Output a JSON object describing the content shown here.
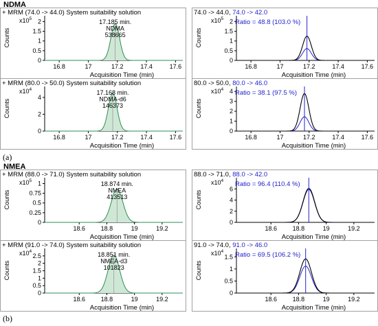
{
  "figure": {
    "section_a_title": "NDMA",
    "section_b_title": "NMEA",
    "panel_a_label": "(a)",
    "panel_b_label": "(b)"
  },
  "colors": {
    "border": "#a0a0a0",
    "peak_fill": "#cfe8d6",
    "peak_line": "#2e8b57",
    "qualifier_blue": "#2222cc",
    "black": "#000000",
    "marker_gray": "#9a9a9a"
  },
  "chart_data": [
    {
      "type": "line",
      "kind": "chromatogram",
      "title": "+ MRM (74.0 -> 44.0) System suitability solution",
      "xlabel": "Acquisition Time (min)",
      "ylabel": "Counts",
      "scale_label": "x10",
      "scale_exp": "5",
      "xlim": [
        16.7,
        17.65
      ],
      "ylim": [
        0,
        2.3
      ],
      "xticks": [
        16.8,
        17,
        17.2,
        17.4,
        17.6
      ],
      "xtick_labels": [
        "16.8",
        "17",
        "17.2",
        "17.4",
        "17.6"
      ],
      "yticks": [
        0,
        0.5,
        1,
        1.5,
        2
      ],
      "ytick_labels": [
        "0",
        "0.5",
        "1",
        "1.5",
        "2"
      ],
      "peak": {
        "rt": 17.185,
        "height": 1.9,
        "sigma": 0.03
      },
      "annotation": [
        "17.185 min.",
        "NDMA",
        "538665"
      ]
    },
    {
      "type": "line",
      "kind": "ratio",
      "title_black": "74.0 -> 44.0,",
      "title_blue": "74.0 -> 42.0",
      "xlabel": "Acquisition Time (min)",
      "ylabel": "Counts",
      "scale_label": "x10",
      "scale_exp": "5",
      "xlim": [
        16.7,
        17.65
      ],
      "ylim": [
        0,
        2.3
      ],
      "xticks": [
        16.8,
        17,
        17.2,
        17.4,
        17.6
      ],
      "xtick_labels": [
        "16.8",
        "17",
        "17.2",
        "17.4",
        "17.6"
      ],
      "yticks": [
        0,
        0.5,
        1,
        1.5,
        2
      ],
      "ytick_labels": [
        "0",
        "0.5",
        "1",
        "1.5",
        "2"
      ],
      "rt": 17.185,
      "sigma": 0.03,
      "series": [
        {
          "color": "black",
          "height": 1.25
        },
        {
          "color": "blue",
          "height": 0.61
        }
      ],
      "ratio_text": "Ratio = 48.8 (103.0 %)"
    },
    {
      "type": "line",
      "kind": "chromatogram",
      "title": "+ MRM (80.0 -> 50.0) System suitability solution",
      "xlabel": "Acquisition Time (min)",
      "ylabel": "Counts",
      "scale_label": "x10",
      "scale_exp": "4",
      "xlim": [
        16.7,
        17.65
      ],
      "ylim": [
        0,
        5.3
      ],
      "xticks": [
        16.8,
        17,
        17.2,
        17.4,
        17.6
      ],
      "xtick_labels": [
        "16.8",
        "17",
        "17.2",
        "17.4",
        "17.6"
      ],
      "yticks": [
        0,
        2,
        4
      ],
      "ytick_labels": [
        "0",
        "2",
        "4"
      ],
      "peak": {
        "rt": 17.168,
        "height": 4.5,
        "sigma": 0.03
      },
      "annotation": [
        "17.168 min.",
        "NDMA-d6",
        "146373"
      ]
    },
    {
      "type": "line",
      "kind": "ratio",
      "title_black": "80.0 -> 50.0,",
      "title_blue": "80.0 -> 46.0",
      "xlabel": "Acquisition Time (min)",
      "ylabel": "Counts",
      "scale_label": "x10",
      "scale_exp": "4",
      "xlim": [
        16.7,
        17.65
      ],
      "ylim": [
        0,
        4.5
      ],
      "xticks": [
        16.8,
        17,
        17.2,
        17.4,
        17.6
      ],
      "xtick_labels": [
        "16.8",
        "17",
        "17.2",
        "17.4",
        "17.6"
      ],
      "yticks": [
        0,
        1,
        2,
        3,
        4
      ],
      "ytick_labels": [
        "0",
        "1",
        "2",
        "3",
        "4"
      ],
      "rt": 17.168,
      "sigma": 0.03,
      "series": [
        {
          "color": "black",
          "height": 3.8
        },
        {
          "color": "blue",
          "height": 1.45
        }
      ],
      "ratio_text": "Ratio = 38.1 (97.5 %)"
    },
    {
      "type": "line",
      "kind": "chromatogram",
      "title": "+ MRM (88.0 -> 71.0) System suitability solution",
      "xlabel": "Acquisition Time (min)",
      "ylabel": "Counts",
      "scale_label": "x10",
      "scale_exp": "5",
      "xlim": [
        18.35,
        19.35
      ],
      "ylim": [
        0,
        1.15
      ],
      "xticks": [
        18.6,
        18.8,
        19,
        19.2
      ],
      "xtick_labels": [
        "18.6",
        "18.8",
        "19",
        "19.2"
      ],
      "yticks": [
        0,
        0.25,
        0.5,
        0.75,
        1
      ],
      "ytick_labels": [
        "0",
        "0.25",
        "0.5",
        "0.75",
        "1"
      ],
      "peak": {
        "rt": 18.874,
        "height": 0.86,
        "sigma": 0.042
      },
      "annotation": [
        "18.874 min.",
        "NMEA",
        "413513"
      ]
    },
    {
      "type": "line",
      "kind": "ratio",
      "title_black": "88.0 -> 71.0,",
      "title_blue": "88.0 -> 42.0",
      "xlabel": "Acquisition Time (min)",
      "ylabel": "Counts",
      "scale_label": "x10",
      "scale_exp": "4",
      "xlim": [
        18.35,
        19.35
      ],
      "ylim": [
        0,
        8.0
      ],
      "xticks": [
        18.6,
        18.8,
        19,
        19.2
      ],
      "xtick_labels": [
        "18.6",
        "18.8",
        "19",
        "19.2"
      ],
      "yticks": [
        0,
        2,
        4,
        6
      ],
      "ytick_labels": [
        "0",
        "2",
        "4",
        "6"
      ],
      "rt": 18.874,
      "sigma": 0.042,
      "series": [
        {
          "color": "black",
          "height": 6.1
        },
        {
          "color": "blue",
          "height": 5.9
        }
      ],
      "ratio_text": "Ratio = 96.4 (110.4 %)"
    },
    {
      "type": "line",
      "kind": "chromatogram",
      "title": "+ MRM (91.0 -> 74.0) System suitability solution",
      "xlabel": "Acquisition Time (min)",
      "ylabel": "Counts",
      "scale_label": "x10",
      "scale_exp": "4",
      "xlim": [
        18.35,
        19.35
      ],
      "ylim": [
        0,
        3.0
      ],
      "xticks": [
        18.6,
        18.8,
        19,
        19.2
      ],
      "xtick_labels": [
        "18.6",
        "18.8",
        "19",
        "19.2"
      ],
      "yticks": [
        0,
        0.5,
        1,
        1.5,
        2,
        2.5
      ],
      "ytick_labels": [
        "0",
        "0.5",
        "1",
        "1.5",
        "2",
        "2.5"
      ],
      "peak": {
        "rt": 18.851,
        "height": 2.55,
        "sigma": 0.042
      },
      "annotation": [
        "18.851 min.",
        "NMEA-d3",
        "101823"
      ]
    },
    {
      "type": "line",
      "kind": "ratio",
      "title_black": "91.0 -> 74.0,",
      "title_blue": "91.0 -> 46.0",
      "xlabel": "Acquisition Time (min)",
      "ylabel": "Counts",
      "scale_label": "x10",
      "scale_exp": "4",
      "xlim": [
        18.35,
        19.35
      ],
      "ylim": [
        0,
        1.85
      ],
      "xticks": [
        18.6,
        18.8,
        19,
        19.2
      ],
      "xtick_labels": [
        "18.6",
        "18.8",
        "19",
        "19.2"
      ],
      "yticks": [
        0,
        0.5,
        1,
        1.5
      ],
      "ytick_labels": [
        "0",
        "0.5",
        "1",
        "1.5"
      ],
      "rt": 18.851,
      "sigma": 0.042,
      "series": [
        {
          "color": "black",
          "height": 1.42
        },
        {
          "color": "blue",
          "height": 1.12
        }
      ],
      "ratio_text": "Ratio = 69.5 (106.2 %)"
    }
  ]
}
